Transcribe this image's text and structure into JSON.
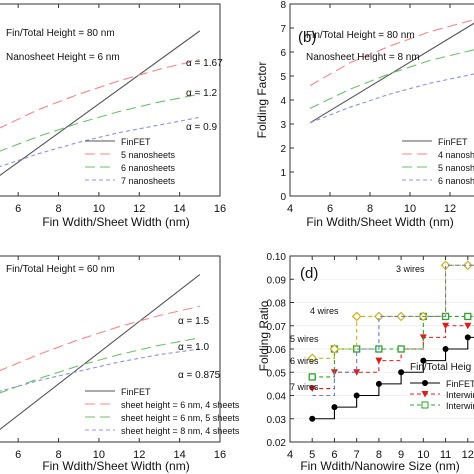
{
  "chart_data": [
    {
      "type": "line",
      "panel": "a",
      "title": "",
      "xlabel": "Fin Wdith/Sheet Width (nm)",
      "ylabel": "",
      "xlim": [
        5,
        16
      ],
      "ylim": [
        0,
        1
      ],
      "xticks": [
        "6",
        "8",
        "10",
        "12",
        "14",
        "16"
      ],
      "annotations": [
        "Fin/Total Height = 80 nm",
        "Nanosheet Height = 6 nm",
        "α = 1.67",
        "α = 1.2",
        "α = 0.9"
      ],
      "legend_position": "lower-right",
      "series": [
        {
          "name": "FinFET",
          "color": "#555555",
          "dash": "solid",
          "x": [
            5,
            15
          ],
          "y": [
            0.1,
            0.86
          ]
        },
        {
          "name": "5 nanosheets",
          "color": "#f08a8a",
          "dash": "long",
          "x": [
            5,
            7,
            9,
            11,
            13,
            15
          ],
          "y": [
            0.35,
            0.45,
            0.53,
            0.6,
            0.66,
            0.71
          ]
        },
        {
          "name": "6 nanosheets",
          "color": "#6fbf6f",
          "dash": "long",
          "x": [
            5,
            7,
            9,
            11,
            13,
            15
          ],
          "y": [
            0.23,
            0.31,
            0.38,
            0.44,
            0.49,
            0.53
          ]
        },
        {
          "name": "7 nanosheets",
          "color": "#9090e0",
          "dash": "short",
          "x": [
            5,
            7,
            9,
            11,
            13,
            15
          ],
          "y": [
            0.15,
            0.22,
            0.28,
            0.33,
            0.37,
            0.41
          ]
        }
      ]
    },
    {
      "type": "line",
      "panel": "b",
      "title": "(b)",
      "xlabel": "Fin Wdith/Sheet Width (nm)",
      "ylabel": "Folding Factor",
      "xlim": [
        4,
        14
      ],
      "ylim": [
        0,
        8
      ],
      "xticks": [
        "4",
        "6",
        "8",
        "10",
        "12"
      ],
      "yticks": [
        "0",
        "1",
        "2",
        "3",
        "4",
        "5",
        "6",
        "7",
        "8"
      ],
      "annotations": [
        "Fin/Total Height = 80 nm",
        "Nanosheet Height = 8 nm"
      ],
      "legend_position": "lower-right",
      "series": [
        {
          "name": "FinFET",
          "color": "#555555",
          "dash": "solid",
          "x": [
            5,
            14
          ],
          "y": [
            3.05,
            7.6
          ]
        },
        {
          "name": "4 nanosheets",
          "color": "#f08a8a",
          "dash": "long",
          "x": [
            5,
            7,
            9,
            11,
            13,
            14
          ],
          "y": [
            4.6,
            5.55,
            6.25,
            6.85,
            7.3,
            7.5
          ]
        },
        {
          "name": "5 nanosheets",
          "color": "#6fbf6f",
          "dash": "long",
          "x": [
            5,
            7,
            9,
            11,
            13,
            14
          ],
          "y": [
            3.65,
            4.45,
            5.1,
            5.65,
            6.05,
            6.25
          ]
        },
        {
          "name": "6 nanosheets",
          "color": "#9090e0",
          "dash": "short",
          "x": [
            5,
            7,
            9,
            11,
            13,
            14
          ],
          "y": [
            3.05,
            3.7,
            4.25,
            4.7,
            5.05,
            5.2
          ]
        }
      ]
    },
    {
      "type": "line",
      "panel": "c",
      "title": "",
      "xlabel": "Fin Wdith/Sheet Width (nm)",
      "ylabel": "",
      "xlim": [
        5,
        16
      ],
      "ylim": [
        0,
        1
      ],
      "xticks": [
        "6",
        "8",
        "10",
        "12",
        "14",
        "16"
      ],
      "annotations": [
        "Fin/Total Height = 60 nm",
        "α = 1.5",
        "α = 1.0",
        "α = 0.875"
      ],
      "legend_position": "lower-right",
      "series": [
        {
          "name": "FinFET",
          "color": "#555555",
          "dash": "solid",
          "x": [
            5,
            15
          ],
          "y": [
            0.06,
            0.9
          ]
        },
        {
          "name": "sheet height = 6 nm, 4 sheets",
          "color": "#f08a8a",
          "dash": "long",
          "x": [
            5,
            7,
            9,
            11,
            13,
            15
          ],
          "y": [
            0.38,
            0.47,
            0.55,
            0.62,
            0.68,
            0.73
          ]
        },
        {
          "name": "sheet height = 6 nm, 5 sheets",
          "color": "#6fbf6f",
          "dash": "long",
          "x": [
            5,
            7,
            9,
            11,
            13,
            15
          ],
          "y": [
            0.26,
            0.34,
            0.41,
            0.47,
            0.52,
            0.56
          ]
        },
        {
          "name": "sheet height = 8 nm, 4 sheets",
          "color": "#9090e0",
          "dash": "short",
          "x": [
            5,
            7,
            9,
            11,
            13,
            15
          ],
          "y": [
            0.27,
            0.33,
            0.38,
            0.43,
            0.47,
            0.5
          ]
        }
      ]
    },
    {
      "type": "line",
      "panel": "d",
      "title": "(d)",
      "xlabel": "Fin Wdith/Nanowire Size (nm)",
      "ylabel": "Folding Ratio",
      "xlim": [
        4,
        13
      ],
      "ylim": [
        0.02,
        0.1
      ],
      "xticks": [
        "4",
        "5",
        "6",
        "7",
        "8",
        "9",
        "10",
        "11",
        "12"
      ],
      "yticks": [
        "0.02",
        "0.03",
        "0.04",
        "0.05",
        "0.06",
        "0.07",
        "0.08",
        "0.09",
        "0.10"
      ],
      "annotations": [
        "3 wires",
        "4 wires",
        "5 wires",
        "6 wires",
        "7 wires",
        "Fin/Total Heig"
      ],
      "legend_position": "lower-right",
      "series": [
        {
          "name": "FinFET",
          "color": "#000000",
          "marker": "circle",
          "x": [
            5,
            6,
            7,
            8,
            9,
            10,
            11,
            12,
            13
          ],
          "y": [
            0.03,
            0.035,
            0.04,
            0.045,
            0.05,
            0.055,
            0.06,
            0.065,
            0.07
          ]
        },
        {
          "name": "Interwire",
          "color": "#d42020",
          "marker": "triangle",
          "x": [
            5,
            6,
            7,
            8,
            9,
            10,
            11,
            12,
            13
          ],
          "y": [
            0.043,
            0.05,
            0.05,
            0.055,
            0.06,
            0.065,
            0.07,
            0.07,
            0.074
          ]
        },
        {
          "name": "Interwire",
          "color": "#2ea02e",
          "marker": "square",
          "x": [
            5,
            6,
            7,
            8,
            9,
            10,
            11,
            12,
            13
          ],
          "y": [
            0.048,
            0.06,
            0.06,
            0.06,
            0.06,
            0.074,
            0.074,
            0.074,
            0.074
          ]
        },
        {
          "name": "",
          "color": "#c9b020",
          "marker": "diamond",
          "x": [
            5,
            6,
            7,
            8,
            9,
            10,
            11,
            12,
            13
          ],
          "y": [
            0.056,
            0.06,
            0.074,
            0.074,
            0.074,
            0.074,
            0.096,
            0.096,
            0.096
          ]
        },
        {
          "name": "",
          "color": "#6a7fd0",
          "marker": "none",
          "x": [
            5,
            6,
            7,
            8,
            9,
            10,
            11,
            12,
            13
          ],
          "y": [
            0.04,
            0.05,
            0.06,
            0.074,
            0.074,
            0.074,
            0.096,
            0.096,
            0.096
          ]
        }
      ]
    }
  ]
}
